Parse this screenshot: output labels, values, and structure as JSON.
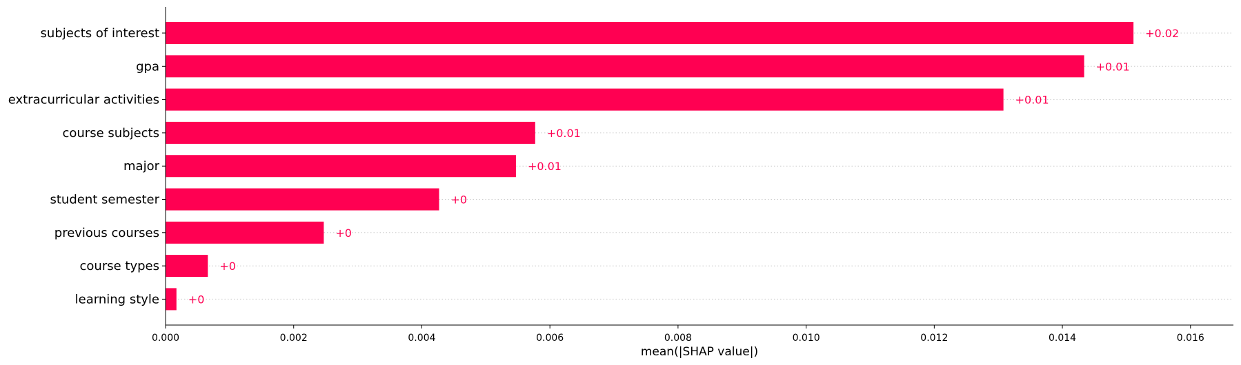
{
  "chart_data": {
    "type": "bar",
    "orientation": "horizontal",
    "categories": [
      "subjects of interest",
      "gpa",
      "extracurricular activities",
      "course subjects",
      "major",
      "student semester",
      "previous courses",
      "course types",
      "learning style"
    ],
    "values": [
      0.01511,
      0.01434,
      0.01308,
      0.00577,
      0.00547,
      0.00427,
      0.00247,
      0.00066,
      0.00017
    ],
    "data_labels": [
      "+0.02",
      "+0.01",
      "+0.01",
      "+0.01",
      "+0.01",
      "+0",
      "+0",
      "+0",
      "+0"
    ],
    "xlabel": "mean(|SHAP value|)",
    "ylabel": "",
    "title": "",
    "xlim": [
      0,
      0.01667
    ],
    "xticks": [
      "0.000",
      "0.002",
      "0.004",
      "0.006",
      "0.008",
      "0.010",
      "0.012",
      "0.014",
      "0.016"
    ],
    "xtick_values": [
      0,
      0.002,
      0.004,
      0.006,
      0.008,
      0.01,
      0.012,
      0.014,
      0.016
    ],
    "grid": "horizontal dotted guide per row",
    "bar_color": "#ff0052",
    "label_color": "#ff0052"
  }
}
